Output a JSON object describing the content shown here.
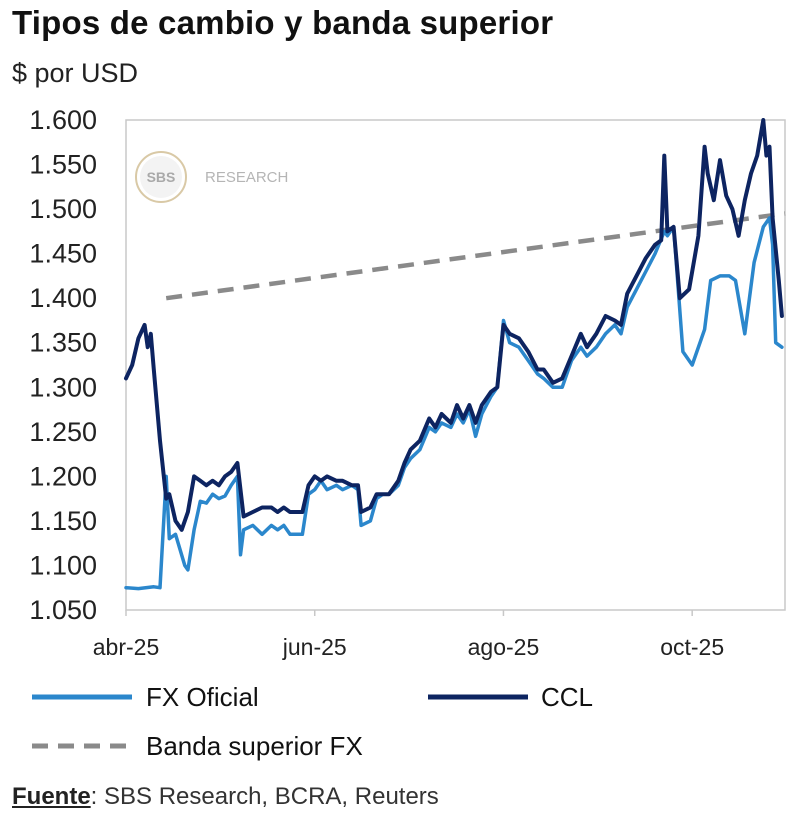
{
  "title": "Tipos de cambio y banda superior",
  "subtitle": "$ por USD",
  "source_label": "Fuente",
  "source_text": ": SBS Research, BCRA, Reuters",
  "watermark": {
    "logo": "SBS",
    "text": "RESEARCH"
  },
  "colors": {
    "fx_oficial": "#2b87cc",
    "ccl": "#0d2461",
    "banda": "#8a8a8a",
    "axis": "#c8c8c8"
  },
  "chart_data": {
    "type": "line",
    "title": "Tipos de cambio y banda superior",
    "ylabel": "$ por USD",
    "xlabel": "",
    "ylim": [
      1050,
      1600
    ],
    "yticks": [
      1050,
      1100,
      1150,
      1200,
      1250,
      1300,
      1350,
      1400,
      1450,
      1500,
      1550,
      1600
    ],
    "yticklabels": [
      "1.050",
      "1.100",
      "1.150",
      "1.200",
      "1.250",
      "1.300",
      "1.350",
      "1.400",
      "1.450",
      "1.500",
      "1.550",
      "1.600"
    ],
    "xlim": [
      "2025-04-01",
      "2025-10-31"
    ],
    "xticks": [
      {
        "date": "2025-04-01",
        "label": "abr-25"
      },
      {
        "date": "2025-06-01",
        "label": "jun-25"
      },
      {
        "date": "2025-08-01",
        "label": "ago-25"
      },
      {
        "date": "2025-10-01",
        "label": "oct-25"
      }
    ],
    "grid": false,
    "legend": "bottom",
    "series": [
      {
        "name": "FX Oficial",
        "style": "solid",
        "points": [
          [
            "2025-04-01",
            1075
          ],
          [
            "2025-04-05",
            1074
          ],
          [
            "2025-04-10",
            1076
          ],
          [
            "2025-04-12",
            1075
          ],
          [
            "2025-04-14",
            1200
          ],
          [
            "2025-04-15",
            1130
          ],
          [
            "2025-04-17",
            1135
          ],
          [
            "2025-04-20",
            1100
          ],
          [
            "2025-04-21",
            1095
          ],
          [
            "2025-04-23",
            1140
          ],
          [
            "2025-04-25",
            1172
          ],
          [
            "2025-04-27",
            1170
          ],
          [
            "2025-04-29",
            1180
          ],
          [
            "2025-05-01",
            1175
          ],
          [
            "2025-05-03",
            1178
          ],
          [
            "2025-05-05",
            1190
          ],
          [
            "2025-05-07",
            1200
          ],
          [
            "2025-05-08",
            1112
          ],
          [
            "2025-05-09",
            1140
          ],
          [
            "2025-05-12",
            1145
          ],
          [
            "2025-05-15",
            1135
          ],
          [
            "2025-05-18",
            1145
          ],
          [
            "2025-05-20",
            1140
          ],
          [
            "2025-05-22",
            1145
          ],
          [
            "2025-05-24",
            1135
          ],
          [
            "2025-05-28",
            1135
          ],
          [
            "2025-05-30",
            1180
          ],
          [
            "2025-06-01",
            1185
          ],
          [
            "2025-06-03",
            1195
          ],
          [
            "2025-06-05",
            1185
          ],
          [
            "2025-06-08",
            1190
          ],
          [
            "2025-06-10",
            1185
          ],
          [
            "2025-06-13",
            1190
          ],
          [
            "2025-06-15",
            1185
          ],
          [
            "2025-06-16",
            1145
          ],
          [
            "2025-06-19",
            1150
          ],
          [
            "2025-06-21",
            1175
          ],
          [
            "2025-06-23",
            1180
          ],
          [
            "2025-06-25",
            1180
          ],
          [
            "2025-06-28",
            1190
          ],
          [
            "2025-06-30",
            1210
          ],
          [
            "2025-07-02",
            1220
          ],
          [
            "2025-07-05",
            1230
          ],
          [
            "2025-07-08",
            1255
          ],
          [
            "2025-07-10",
            1250
          ],
          [
            "2025-07-12",
            1260
          ],
          [
            "2025-07-15",
            1255
          ],
          [
            "2025-07-17",
            1270
          ],
          [
            "2025-07-19",
            1260
          ],
          [
            "2025-07-21",
            1275
          ],
          [
            "2025-07-23",
            1245
          ],
          [
            "2025-07-25",
            1270
          ],
          [
            "2025-07-28",
            1290
          ],
          [
            "2025-07-30",
            1300
          ],
          [
            "2025-08-01",
            1375
          ],
          [
            "2025-08-03",
            1350
          ],
          [
            "2025-08-06",
            1345
          ],
          [
            "2025-08-09",
            1330
          ],
          [
            "2025-08-12",
            1315
          ],
          [
            "2025-08-14",
            1310
          ],
          [
            "2025-08-17",
            1300
          ],
          [
            "2025-08-20",
            1300
          ],
          [
            "2025-08-23",
            1330
          ],
          [
            "2025-08-26",
            1345
          ],
          [
            "2025-08-28",
            1335
          ],
          [
            "2025-08-31",
            1345
          ],
          [
            "2025-09-03",
            1360
          ],
          [
            "2025-09-06",
            1370
          ],
          [
            "2025-09-08",
            1360
          ],
          [
            "2025-09-10",
            1390
          ],
          [
            "2025-09-13",
            1410
          ],
          [
            "2025-09-16",
            1430
          ],
          [
            "2025-09-19",
            1450
          ],
          [
            "2025-09-22",
            1475
          ],
          [
            "2025-09-23",
            1470
          ],
          [
            "2025-09-25",
            1480
          ],
          [
            "2025-09-28",
            1340
          ],
          [
            "2025-10-01",
            1325
          ],
          [
            "2025-10-05",
            1365
          ],
          [
            "2025-10-07",
            1420
          ],
          [
            "2025-10-10",
            1425
          ],
          [
            "2025-10-13",
            1425
          ],
          [
            "2025-10-15",
            1420
          ],
          [
            "2025-10-18",
            1360
          ],
          [
            "2025-10-21",
            1440
          ],
          [
            "2025-10-24",
            1480
          ],
          [
            "2025-10-26",
            1490
          ],
          [
            "2025-10-27",
            1460
          ],
          [
            "2025-10-28",
            1350
          ],
          [
            "2025-10-30",
            1345
          ]
        ]
      },
      {
        "name": "CCL",
        "style": "solid",
        "points": [
          [
            "2025-04-01",
            1310
          ],
          [
            "2025-04-03",
            1325
          ],
          [
            "2025-04-05",
            1355
          ],
          [
            "2025-04-07",
            1370
          ],
          [
            "2025-04-08",
            1345
          ],
          [
            "2025-04-09",
            1360
          ],
          [
            "2025-04-10",
            1320
          ],
          [
            "2025-04-12",
            1240
          ],
          [
            "2025-04-14",
            1175
          ],
          [
            "2025-04-15",
            1180
          ],
          [
            "2025-04-17",
            1150
          ],
          [
            "2025-04-19",
            1140
          ],
          [
            "2025-04-21",
            1160
          ],
          [
            "2025-04-23",
            1200
          ],
          [
            "2025-04-25",
            1195
          ],
          [
            "2025-04-27",
            1190
          ],
          [
            "2025-04-29",
            1195
          ],
          [
            "2025-05-01",
            1190
          ],
          [
            "2025-05-03",
            1200
          ],
          [
            "2025-05-05",
            1205
          ],
          [
            "2025-05-07",
            1215
          ],
          [
            "2025-05-09",
            1155
          ],
          [
            "2025-05-12",
            1160
          ],
          [
            "2025-05-15",
            1165
          ],
          [
            "2025-05-18",
            1165
          ],
          [
            "2025-05-20",
            1160
          ],
          [
            "2025-05-22",
            1165
          ],
          [
            "2025-05-24",
            1160
          ],
          [
            "2025-05-28",
            1160
          ],
          [
            "2025-05-30",
            1190
          ],
          [
            "2025-06-01",
            1200
          ],
          [
            "2025-06-03",
            1195
          ],
          [
            "2025-06-05",
            1200
          ],
          [
            "2025-06-08",
            1195
          ],
          [
            "2025-06-10",
            1195
          ],
          [
            "2025-06-13",
            1190
          ],
          [
            "2025-06-15",
            1190
          ],
          [
            "2025-06-16",
            1160
          ],
          [
            "2025-06-19",
            1165
          ],
          [
            "2025-06-21",
            1180
          ],
          [
            "2025-06-23",
            1180
          ],
          [
            "2025-06-25",
            1180
          ],
          [
            "2025-06-28",
            1195
          ],
          [
            "2025-06-30",
            1215
          ],
          [
            "2025-07-02",
            1230
          ],
          [
            "2025-07-05",
            1240
          ],
          [
            "2025-07-08",
            1265
          ],
          [
            "2025-07-10",
            1255
          ],
          [
            "2025-07-12",
            1270
          ],
          [
            "2025-07-15",
            1260
          ],
          [
            "2025-07-17",
            1280
          ],
          [
            "2025-07-19",
            1265
          ],
          [
            "2025-07-21",
            1280
          ],
          [
            "2025-07-23",
            1260
          ],
          [
            "2025-07-25",
            1280
          ],
          [
            "2025-07-28",
            1295
          ],
          [
            "2025-07-30",
            1300
          ],
          [
            "2025-08-01",
            1370
          ],
          [
            "2025-08-03",
            1360
          ],
          [
            "2025-08-06",
            1355
          ],
          [
            "2025-08-09",
            1340
          ],
          [
            "2025-08-12",
            1320
          ],
          [
            "2025-08-14",
            1320
          ],
          [
            "2025-08-17",
            1305
          ],
          [
            "2025-08-20",
            1310
          ],
          [
            "2025-08-23",
            1335
          ],
          [
            "2025-08-26",
            1360
          ],
          [
            "2025-08-28",
            1345
          ],
          [
            "2025-08-31",
            1360
          ],
          [
            "2025-09-03",
            1380
          ],
          [
            "2025-09-06",
            1375
          ],
          [
            "2025-09-08",
            1370
          ],
          [
            "2025-09-10",
            1405
          ],
          [
            "2025-09-13",
            1425
          ],
          [
            "2025-09-16",
            1445
          ],
          [
            "2025-09-19",
            1460
          ],
          [
            "2025-09-21",
            1465
          ],
          [
            "2025-09-22",
            1560
          ],
          [
            "2025-09-23",
            1475
          ],
          [
            "2025-09-25",
            1480
          ],
          [
            "2025-09-27",
            1400
          ],
          [
            "2025-09-30",
            1410
          ],
          [
            "2025-10-03",
            1470
          ],
          [
            "2025-10-05",
            1570
          ],
          [
            "2025-10-06",
            1540
          ],
          [
            "2025-10-08",
            1510
          ],
          [
            "2025-10-10",
            1555
          ],
          [
            "2025-10-12",
            1515
          ],
          [
            "2025-10-14",
            1500
          ],
          [
            "2025-10-16",
            1470
          ],
          [
            "2025-10-18",
            1510
          ],
          [
            "2025-10-20",
            1540
          ],
          [
            "2025-10-22",
            1560
          ],
          [
            "2025-10-24",
            1600
          ],
          [
            "2025-10-25",
            1560
          ],
          [
            "2025-10-26",
            1570
          ],
          [
            "2025-10-27",
            1490
          ],
          [
            "2025-10-29",
            1420
          ],
          [
            "2025-10-30",
            1380
          ]
        ]
      },
      {
        "name": "Banda superior FX",
        "style": "dashed",
        "points": [
          [
            "2025-04-14",
            1400
          ],
          [
            "2025-10-31",
            1495
          ]
        ]
      }
    ]
  }
}
